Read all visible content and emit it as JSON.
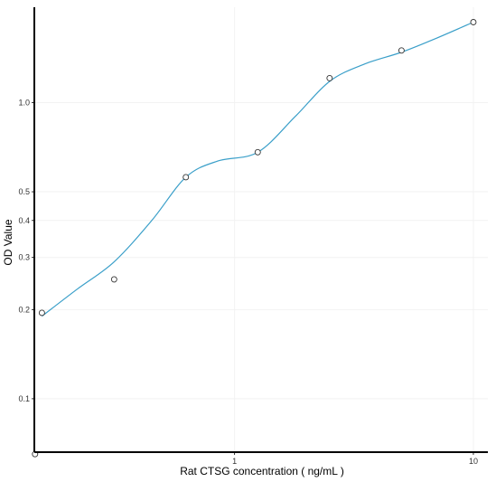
{
  "chart_data": {
    "type": "scatter",
    "title": "",
    "xlabel": "Rat CTSG concentration ( ng/mL )",
    "ylabel": "OD Value",
    "x_scale": "log",
    "y_scale": "log",
    "xlim": [
      0.145,
      11.5
    ],
    "ylim": [
      0.066,
      2.1
    ],
    "x_ticks": [
      {
        "value": 1,
        "label": "1"
      },
      {
        "value": 10,
        "label": "10"
      }
    ],
    "y_ticks": [
      {
        "value": 0.1,
        "label": "0.1"
      },
      {
        "value": 0.2,
        "label": "0.2"
      },
      {
        "value": 0.3,
        "label": "0.3"
      },
      {
        "value": 0.4,
        "label": "0.4"
      },
      {
        "value": 0.5,
        "label": "0.5"
      },
      {
        "value": 1.0,
        "label": "1.0"
      }
    ],
    "grid": true,
    "points": {
      "x": [
        0.146,
        0.156,
        0.313,
        0.625,
        1.25,
        2.5,
        5,
        10
      ],
      "y": [
        0.065,
        0.195,
        0.253,
        0.56,
        0.68,
        1.21,
        1.5,
        1.87
      ]
    },
    "fit_curve": {
      "x": [
        0.156,
        0.22,
        0.313,
        0.45,
        0.625,
        0.85,
        1.25,
        1.8,
        2.5,
        3.5,
        5,
        7,
        10
      ],
      "y": [
        0.19,
        0.235,
        0.29,
        0.4,
        0.56,
        0.635,
        0.68,
        0.9,
        1.18,
        1.35,
        1.48,
        1.65,
        1.87
      ]
    },
    "colors": {
      "curve": "#3a9fc9",
      "point_stroke": "#333333",
      "point_fill": "#ffffff",
      "axis": "#000000",
      "grid": "#f2f2f2"
    }
  }
}
